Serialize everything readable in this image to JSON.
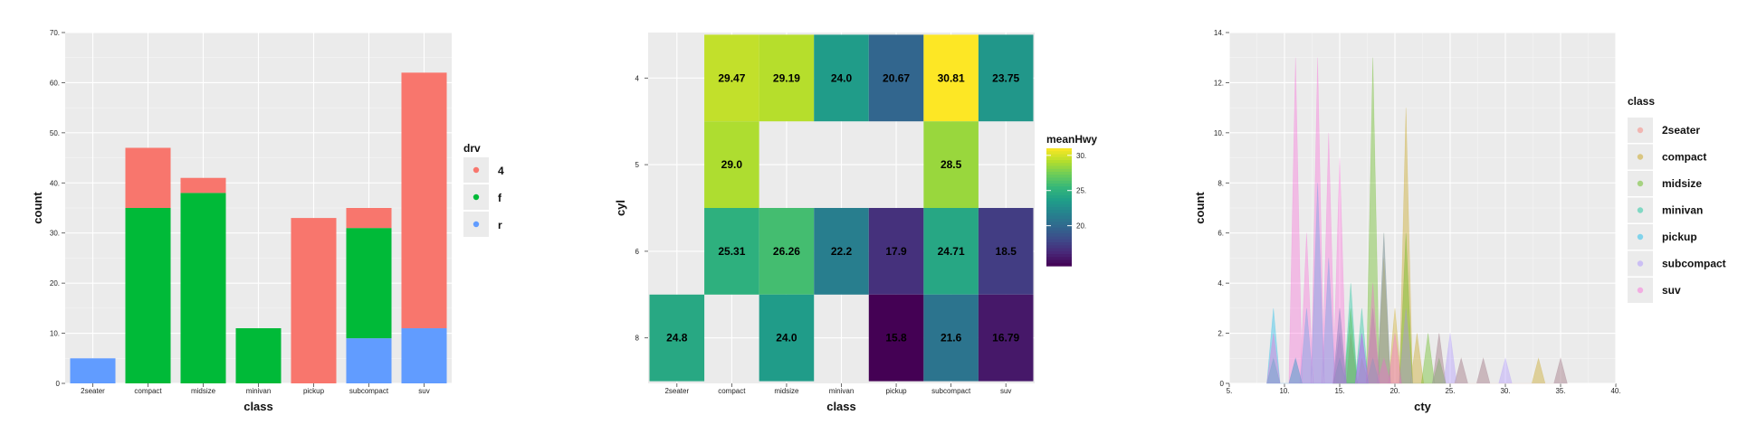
{
  "chart_data": [
    {
      "type": "bar",
      "stacked": true,
      "categories": [
        "2seater",
        "compact",
        "midsize",
        "minivan",
        "pickup",
        "subcompact",
        "suv"
      ],
      "series": [
        {
          "name": "4",
          "color": "#F8766D",
          "values": [
            0,
            12,
            3,
            0,
            33,
            4,
            51
          ]
        },
        {
          "name": "f",
          "color": "#00BA38",
          "values": [
            0,
            35,
            38,
            11,
            0,
            22,
            0
          ]
        },
        {
          "name": "r",
          "color": "#619CFF",
          "values": [
            5,
            0,
            0,
            0,
            0,
            9,
            11
          ]
        }
      ],
      "xlabel": "class",
      "ylabel": "count",
      "ylim": [
        0,
        70
      ],
      "yticks": [
        "0",
        "10.",
        "20.",
        "30.",
        "40.",
        "50.",
        "60.",
        "70."
      ],
      "legend": {
        "title": "drv",
        "position": "right"
      },
      "grid": true,
      "background": "#EBEBEB"
    },
    {
      "type": "heatmap",
      "x_categories": [
        "2seater",
        "compact",
        "midsize",
        "minivan",
        "pickup",
        "subcompact",
        "suv"
      ],
      "y_categories": [
        "4",
        "5",
        "6",
        "8"
      ],
      "cells": [
        {
          "x": "compact",
          "y": "4",
          "value": 29.47,
          "label": "29.47"
        },
        {
          "x": "midsize",
          "y": "4",
          "value": 29.19,
          "label": "29.19"
        },
        {
          "x": "minivan",
          "y": "4",
          "value": 24.0,
          "label": "24.0"
        },
        {
          "x": "pickup",
          "y": "4",
          "value": 20.67,
          "label": "20.67"
        },
        {
          "x": "subcompact",
          "y": "4",
          "value": 30.81,
          "label": "30.81"
        },
        {
          "x": "suv",
          "y": "4",
          "value": 23.75,
          "label": "23.75"
        },
        {
          "x": "compact",
          "y": "5",
          "value": 29.0,
          "label": "29.0"
        },
        {
          "x": "subcompact",
          "y": "5",
          "value": 28.5,
          "label": "28.5"
        },
        {
          "x": "compact",
          "y": "6",
          "value": 25.31,
          "label": "25.31"
        },
        {
          "x": "midsize",
          "y": "6",
          "value": 26.26,
          "label": "26.26"
        },
        {
          "x": "minivan",
          "y": "6",
          "value": 22.2,
          "label": "22.2"
        },
        {
          "x": "pickup",
          "y": "6",
          "value": 17.9,
          "label": "17.9"
        },
        {
          "x": "subcompact",
          "y": "6",
          "value": 24.71,
          "label": "24.71"
        },
        {
          "x": "suv",
          "y": "6",
          "value": 18.5,
          "label": "18.5"
        },
        {
          "x": "2seater",
          "y": "8",
          "value": 24.8,
          "label": "24.8"
        },
        {
          "x": "midsize",
          "y": "8",
          "value": 24.0,
          "label": "24.0"
        },
        {
          "x": "pickup",
          "y": "8",
          "value": 15.8,
          "label": "15.8"
        },
        {
          "x": "subcompact",
          "y": "8",
          "value": 21.6,
          "label": "21.6"
        },
        {
          "x": "suv",
          "y": "8",
          "value": 16.79,
          "label": "16.79"
        }
      ],
      "xlabel": "class",
      "ylabel": "cyl",
      "color_scale": {
        "name": "viridis",
        "title": "meanHwy",
        "domain": [
          15.8,
          30.81
        ],
        "ticks": [
          20,
          25,
          30
        ],
        "tick_labels": [
          "20.",
          "25.",
          "30."
        ]
      },
      "background": "#EBEBEB"
    },
    {
      "type": "area",
      "subtype": "frequency_polygon",
      "xlabel": "cty",
      "ylabel": "count",
      "xlim": [
        5,
        40
      ],
      "ylim": [
        0,
        14
      ],
      "xticks": [
        "5.",
        "10.",
        "15.",
        "20.",
        "25.",
        "30.",
        "35.",
        "40."
      ],
      "yticks": [
        "0",
        "2.",
        "4.",
        "6.",
        "8.",
        "10.",
        "12.",
        "14."
      ],
      "legend": {
        "title": "class",
        "position": "right"
      },
      "opacity": 0.35,
      "series": [
        {
          "name": "2seater",
          "color": "#F8766D",
          "points": [
            [
              14.4,
              0
            ],
            [
              15,
              3
            ],
            [
              15.6,
              0
            ],
            [
              15.6,
              0
            ],
            [
              16,
              2
            ],
            [
              16.6,
              0
            ]
          ]
        },
        {
          "name": "compact",
          "color": "#C49A00",
          "points": [
            [
              14.4,
              0
            ],
            [
              15,
              1
            ],
            [
              15.6,
              0
            ],
            [
              16.6,
              0
            ],
            [
              17,
              1
            ],
            [
              17.6,
              0
            ],
            [
              17.4,
              0
            ],
            [
              18,
              3
            ],
            [
              18.6,
              0
            ],
            [
              18.4,
              0
            ],
            [
              19,
              5
            ],
            [
              19.6,
              0
            ],
            [
              19.4,
              0
            ],
            [
              20,
              3
            ],
            [
              20.6,
              0
            ],
            [
              20.4,
              0
            ],
            [
              21,
              11
            ],
            [
              21.6,
              0
            ],
            [
              21.4,
              0
            ],
            [
              22,
              2
            ],
            [
              22.6,
              0
            ],
            [
              23.4,
              0
            ],
            [
              24,
              2
            ],
            [
              24.6,
              0
            ],
            [
              25.4,
              0
            ],
            [
              26,
              1
            ],
            [
              26.6,
              0
            ],
            [
              27.4,
              0
            ],
            [
              28,
              1
            ],
            [
              28.6,
              0
            ],
            [
              32.4,
              0
            ],
            [
              33,
              1
            ],
            [
              33.6,
              0
            ],
            [
              34.4,
              0
            ],
            [
              35,
              1
            ],
            [
              35.6,
              0
            ]
          ]
        },
        {
          "name": "midsize",
          "color": "#53B400",
          "points": [
            [
              14.4,
              0
            ],
            [
              15,
              2
            ],
            [
              15.6,
              0
            ],
            [
              15.4,
              0
            ],
            [
              16,
              3
            ],
            [
              16.6,
              0
            ],
            [
              17.4,
              0
            ],
            [
              18,
              13
            ],
            [
              18.6,
              0
            ],
            [
              18.4,
              0
            ],
            [
              19,
              6
            ],
            [
              19.6,
              0
            ],
            [
              20.4,
              0
            ],
            [
              21,
              6
            ],
            [
              21.6,
              0
            ],
            [
              22.4,
              0
            ],
            [
              23,
              2
            ],
            [
              23.6,
              0
            ],
            [
              23.4,
              0
            ],
            [
              24,
              1
            ],
            [
              24.6,
              0
            ]
          ]
        },
        {
          "name": "minivan",
          "color": "#00C094",
          "points": [
            [
              8.4,
              0
            ],
            [
              9,
              1
            ],
            [
              9.6,
              0
            ],
            [
              10.4,
              0
            ],
            [
              11,
              1
            ],
            [
              11.6,
              0
            ],
            [
              14.4,
              0
            ],
            [
              15,
              1
            ],
            [
              15.6,
              0
            ],
            [
              15.4,
              0
            ],
            [
              16,
              4
            ],
            [
              16.6,
              0
            ],
            [
              16.4,
              0
            ],
            [
              17,
              3
            ],
            [
              17.6,
              0
            ],
            [
              17.4,
              0
            ],
            [
              18,
              1
            ],
            [
              18.6,
              0
            ]
          ]
        },
        {
          "name": "pickup",
          "color": "#00B6EB",
          "points": [
            [
              8.4,
              0
            ],
            [
              9,
              3
            ],
            [
              9.6,
              0
            ],
            [
              10.4,
              0
            ],
            [
              11,
              1
            ],
            [
              11.6,
              0
            ],
            [
              11.4,
              0
            ],
            [
              12,
              3
            ],
            [
              12.6,
              0
            ],
            [
              12.4,
              0
            ],
            [
              13,
              8
            ],
            [
              13.6,
              0
            ],
            [
              13.4,
              0
            ],
            [
              14,
              5
            ],
            [
              14.6,
              0
            ],
            [
              14.4,
              0
            ],
            [
              15,
              3
            ],
            [
              15.6,
              0
            ],
            [
              16.4,
              0
            ],
            [
              17,
              2
            ],
            [
              17.6,
              0
            ]
          ]
        },
        {
          "name": "subcompact",
          "color": "#A58AFF",
          "points": [
            [
              14.4,
              0
            ],
            [
              15,
              2
            ],
            [
              15.6,
              0
            ],
            [
              16.4,
              0
            ],
            [
              17,
              2
            ],
            [
              17.6,
              0
            ],
            [
              17.4,
              0
            ],
            [
              18,
              3
            ],
            [
              18.6,
              0
            ],
            [
              18.4,
              0
            ],
            [
              19,
              6
            ],
            [
              19.6,
              0
            ],
            [
              20.4,
              0
            ],
            [
              21,
              3
            ],
            [
              21.6,
              0
            ],
            [
              23.4,
              0
            ],
            [
              24,
              2
            ],
            [
              24.6,
              0
            ],
            [
              24.4,
              0
            ],
            [
              25,
              2
            ],
            [
              25.6,
              0
            ],
            [
              25.4,
              0
            ],
            [
              26,
              1
            ],
            [
              26.6,
              0
            ],
            [
              27.4,
              0
            ],
            [
              28,
              1
            ],
            [
              28.6,
              0
            ],
            [
              29.4,
              0
            ],
            [
              30,
              1
            ],
            [
              30.6,
              0
            ],
            [
              34.4,
              0
            ],
            [
              35,
              1
            ],
            [
              35.6,
              0
            ]
          ]
        },
        {
          "name": "suv",
          "color": "#FB61D7",
          "points": [
            [
              8.4,
              0
            ],
            [
              9,
              2
            ],
            [
              9.6,
              0
            ],
            [
              10.4,
              0
            ],
            [
              11,
              13
            ],
            [
              11.6,
              0
            ],
            [
              11.4,
              0
            ],
            [
              12,
              6
            ],
            [
              12.6,
              0
            ],
            [
              12.4,
              0
            ],
            [
              13,
              13
            ],
            [
              13.6,
              0
            ],
            [
              13.4,
              0
            ],
            [
              14,
              10
            ],
            [
              14.6,
              0
            ],
            [
              14.4,
              0
            ],
            [
              15,
              9
            ],
            [
              15.6,
              0
            ],
            [
              16.4,
              0
            ],
            [
              17,
              2
            ],
            [
              17.6,
              0
            ],
            [
              17.4,
              0
            ],
            [
              18,
              4
            ],
            [
              18.6,
              0
            ],
            [
              18.4,
              0
            ],
            [
              19,
              1
            ],
            [
              19.6,
              0
            ],
            [
              19.4,
              0
            ],
            [
              20,
              2
            ],
            [
              20.6,
              0
            ]
          ]
        }
      ]
    }
  ]
}
